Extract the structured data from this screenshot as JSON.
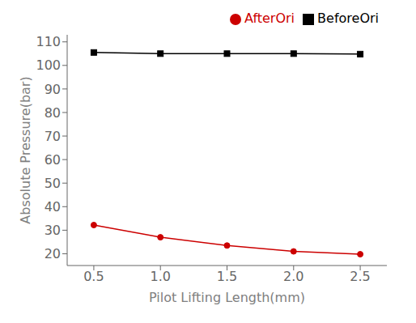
{
  "chart_data": {
    "type": "line",
    "x": [
      0.5,
      1.0,
      1.5,
      2.0,
      2.5
    ],
    "series": [
      {
        "name": "BeforeOri",
        "color": "#000000",
        "marker": "square",
        "values": [
          105.5,
          105.0,
          105.0,
          105.0,
          104.8
        ]
      },
      {
        "name": "AfterOri",
        "color": "#cc0000",
        "marker": "circle",
        "values": [
          32.2,
          27.0,
          23.5,
          21.0,
          19.8
        ]
      }
    ],
    "xlabel": "Pilot Lifting Length(mm)",
    "ylabel": "Absolute Pressure(bar)",
    "xlim": [
      0.3,
      2.7
    ],
    "ylim": [
      15,
      113
    ],
    "xticks": [
      0.5,
      {
        "value": 1.0,
        "label": "1.0"
      },
      1.5,
      {
        "value": 2.0,
        "label": "2.0"
      },
      2.5
    ],
    "yticks": [
      20,
      30,
      40,
      50,
      60,
      70,
      80,
      90,
      100,
      110
    ],
    "legend": "upper right",
    "grid": false
  }
}
